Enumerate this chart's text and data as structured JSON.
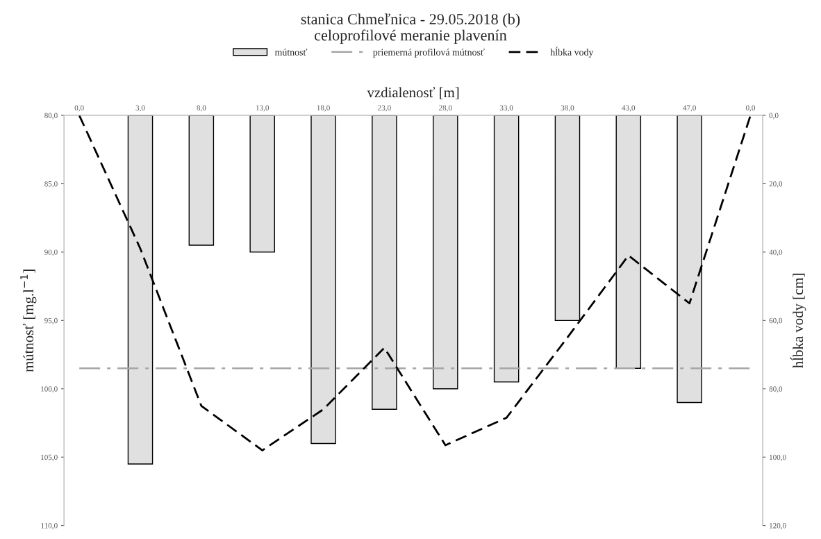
{
  "chart_data": {
    "type": "bar",
    "title": "stanica Chmeľnica - 29.05.2018 (b)",
    "subtitle": "celoprofilové meranie plavenín",
    "xlabel": "vzdialenosť [m]",
    "ylabel": "mútnosť [mg.l$^{−1}$]",
    "y2label": "hĺbka vody [cm]",
    "categories": [
      "0,0",
      "3,0",
      "8,0",
      "13,0",
      "18,0",
      "23,0",
      "28,0",
      "33,0",
      "38,0",
      "43,0",
      "47,0",
      "0,0"
    ],
    "series": [
      {
        "name": "mútnosť",
        "color": "#e0e0e0",
        "values": [
          null,
          105.5,
          89.5,
          90.0,
          104.0,
          101.5,
          100.0,
          99.5,
          95.0,
          98.5,
          101.0,
          null
        ]
      },
      {
        "name": "hĺbka vody",
        "type": "line",
        "axis": "y2",
        "color": "#000000",
        "line_style": "dashed",
        "values": [
          0,
          39,
          85,
          98,
          86,
          68,
          96.5,
          88.5,
          65,
          41,
          55,
          0
        ]
      }
    ],
    "ref_lines": [
      {
        "axis": "y",
        "value": 98.5,
        "label": "priemerná profilová mútnosť",
        "color": "#a6a6a6",
        "line_style": "dashdot"
      }
    ],
    "ylim": [
      110,
      80
    ],
    "yticks": [
      {
        "value": 80,
        "label": "80,0"
      },
      {
        "value": 85,
        "label": "85,0"
      },
      {
        "value": 90,
        "label": "90,0"
      },
      {
        "value": 95,
        "label": "95,0"
      },
      {
        "value": 100,
        "label": "100,0"
      },
      {
        "value": 105,
        "label": "105,0"
      },
      {
        "value": 110,
        "label": "110,0"
      }
    ],
    "y2lim": [
      120,
      0
    ],
    "y2ticks": [
      {
        "value": 0,
        "label": "0,0"
      },
      {
        "value": 20,
        "label": "20,0"
      },
      {
        "value": 40,
        "label": "40,0"
      },
      {
        "value": 60,
        "label": "60,0"
      },
      {
        "value": 80,
        "label": "80,0"
      },
      {
        "value": 100,
        "label": "100,0"
      },
      {
        "value": 120,
        "label": "120,0"
      }
    ],
    "grid": false,
    "legend": "top"
  }
}
